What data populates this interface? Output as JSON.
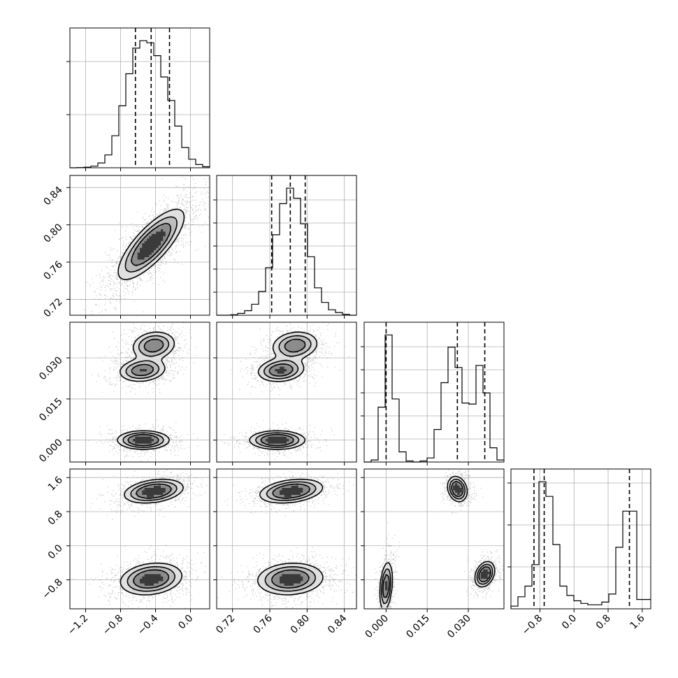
{
  "chart_data": {
    "type": "corner",
    "parameters": [
      {
        "name": "",
        "range": [
          -1.38,
          0.22
        ],
        "ticks": [
          -1.2,
          -0.8,
          -0.4,
          0.0
        ],
        "tick_labels": [
          "−1.2",
          "−0.8",
          "−0.4",
          "0.0"
        ],
        "quantiles": [
          -0.63,
          -0.45,
          -0.24
        ],
        "hist": {
          "edges": [
            -1.38,
            -1.3,
            -1.22,
            -1.14,
            -1.06,
            -0.98,
            -0.9,
            -0.82,
            -0.74,
            -0.66,
            -0.58,
            -0.5,
            -0.42,
            -0.34,
            -0.26,
            -0.18,
            -0.1,
            -0.02,
            0.06,
            0.14,
            0.22
          ],
          "counts": [
            0,
            0.2,
            0.5,
            1.5,
            4.5,
            12,
            30,
            58,
            88,
            112,
            119,
            117,
            105,
            85,
            63,
            39,
            19,
            8,
            3,
            1
          ]
        }
      },
      {
        "name": "",
        "range": [
          0.703,
          0.853
        ],
        "ticks": [
          0.72,
          0.76,
          0.8,
          0.84
        ],
        "tick_labels": [
          "0.72",
          "0.76",
          "0.80",
          "0.84"
        ],
        "quantiles": [
          0.762,
          0.782,
          0.798
        ],
        "hist": {
          "edges": [
            0.703,
            0.7105,
            0.718,
            0.7255,
            0.733,
            0.7405,
            0.748,
            0.7555,
            0.763,
            0.7705,
            0.778,
            0.7855,
            0.793,
            0.8005,
            0.808,
            0.8155,
            0.823,
            0.8305,
            0.838,
            0.8455,
            0.853
          ],
          "counts": [
            0,
            0,
            0.5,
            2,
            5,
            12,
            26,
            52,
            88,
            122,
            139,
            128,
            100,
            64,
            30,
            14,
            6,
            3,
            1,
            0
          ]
        }
      },
      {
        "name": "",
        "range": [
          -0.008,
          0.043
        ],
        "ticks": [
          0.0,
          0.015,
          0.03
        ],
        "tick_labels": [
          "0.000",
          "0.015",
          "0.030"
        ],
        "quantiles": [
          0.0,
          0.026,
          0.036
        ],
        "hist": {
          "edges": [
            -0.008,
            -0.00545,
            -0.0029,
            -0.00035,
            0.0022,
            0.00475,
            0.0073,
            0.00985,
            0.0124,
            0.01495,
            0.0175,
            0.02005,
            0.0226,
            0.02515,
            0.0277,
            0.03025,
            0.0328,
            0.03535,
            0.0379,
            0.04045,
            0.043
          ],
          "counts": [
            0,
            2,
            54,
            125,
            62,
            10,
            1,
            0,
            1,
            4,
            32,
            78,
            113,
            93,
            58,
            57,
            95,
            68,
            14,
            2
          ]
        }
      },
      {
        "name": "",
        "range": [
          -1.48,
          1.8
        ],
        "ticks": [
          -0.8,
          0.0,
          0.8,
          1.6
        ],
        "tick_labels": [
          "−0.8",
          "0.0",
          "0.8",
          "1.6"
        ],
        "quantiles": [
          -0.94,
          -0.7,
          1.3
        ],
        "hist": {
          "edges": [
            -1.48,
            -1.316,
            -1.152,
            -0.988,
            -0.824,
            -0.66,
            -0.496,
            -0.332,
            -0.168,
            -0.004,
            0.16,
            0.324,
            0.488,
            0.652,
            0.816,
            0.98,
            1.144,
            1.308,
            1.472,
            1.636,
            1.8
          ],
          "counts": [
            2,
            9,
            17,
            33,
            95,
            84,
            48,
            17,
            10,
            6,
            4,
            3,
            3,
            5,
            11,
            46,
            73,
            73,
            7,
            7
          ]
        }
      }
    ],
    "panels_2d": [
      {
        "x": 0,
        "y": 1,
        "modes": [
          {
            "mean": [
              -0.45,
              0.779
            ],
            "sd": [
              0.19,
              0.019
            ],
            "rho": 0.78,
            "w": 1
          }
        ]
      },
      {
        "x": 0,
        "y": 2,
        "modes": [
          {
            "mean": [
              -0.54,
              0.0
            ],
            "sd": [
              0.15,
              0.0017
            ],
            "rho": 0,
            "w": 0.35
          },
          {
            "mean": [
              -0.42,
              0.0345
            ],
            "sd": [
              0.13,
              0.0027
            ],
            "rho": 0.15,
            "w": 0.34
          },
          {
            "mean": [
              -0.55,
              0.0255
            ],
            "sd": [
              0.14,
              0.0022
            ],
            "rho": 0.15,
            "w": 0.31
          }
        ]
      },
      {
        "x": 1,
        "y": 2,
        "modes": [
          {
            "mean": [
              0.768,
              0.0
            ],
            "sd": [
              0.015,
              0.0017
            ],
            "rho": 0,
            "w": 0.35
          },
          {
            "mean": [
              0.787,
              0.0345
            ],
            "sd": [
              0.013,
              0.0027
            ],
            "rho": 0.15,
            "w": 0.34
          },
          {
            "mean": [
              0.772,
              0.0255
            ],
            "sd": [
              0.013,
              0.0022
            ],
            "rho": 0.15,
            "w": 0.31
          }
        ]
      },
      {
        "x": 0,
        "y": 3,
        "modes": [
          {
            "mean": [
              -0.45,
              -0.78
            ],
            "sd": [
              0.18,
              0.19
            ],
            "rho": 0.2,
            "w": 0.58
          },
          {
            "mean": [
              -0.42,
              1.28
            ],
            "sd": [
              0.17,
              0.14
            ],
            "rho": 0.3,
            "w": 0.42
          }
        ]
      },
      {
        "x": 1,
        "y": 3,
        "modes": [
          {
            "mean": [
              0.782,
              -0.78
            ],
            "sd": [
              0.018,
              0.19
            ],
            "rho": 0.1,
            "w": 0.58
          },
          {
            "mean": [
              0.783,
              1.28
            ],
            "sd": [
              0.017,
              0.14
            ],
            "rho": 0.3,
            "w": 0.42
          }
        ]
      },
      {
        "x": 2,
        "y": 3,
        "modes": [
          {
            "mean": [
              0.0,
              -0.95
            ],
            "sd": [
              0.0012,
              0.3
            ],
            "rho": 0.3,
            "w": 0.34
          },
          {
            "mean": [
              0.026,
              1.33
            ],
            "sd": [
              0.0018,
              0.15
            ],
            "rho": -0.2,
            "w": 0.33
          },
          {
            "mean": [
              0.036,
              -0.67
            ],
            "sd": [
              0.0018,
              0.15
            ],
            "rho": 0.3,
            "w": 0.33
          }
        ]
      }
    ]
  }
}
